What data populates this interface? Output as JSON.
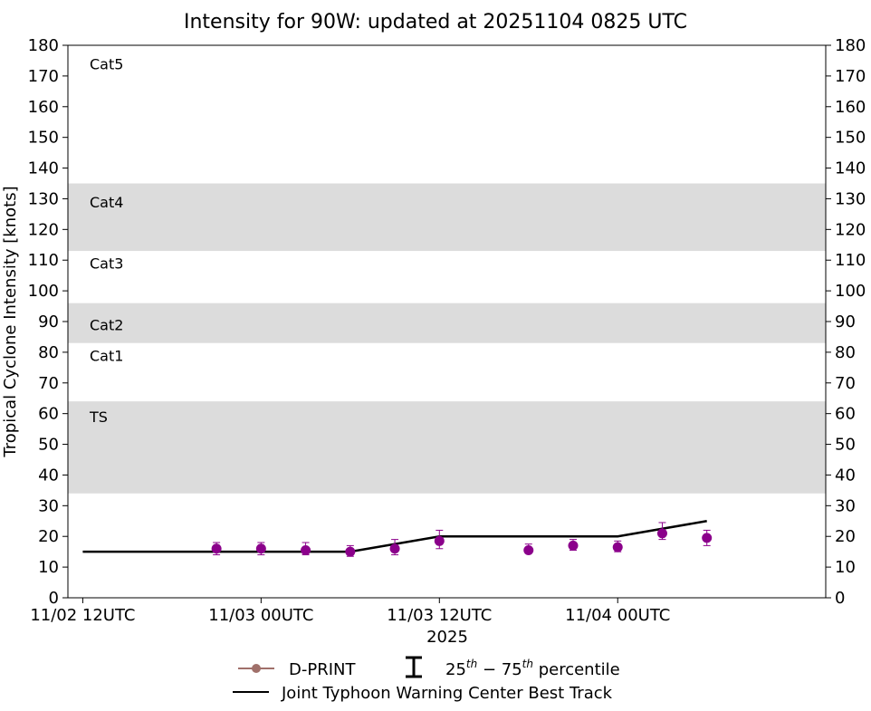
{
  "chart_data": {
    "type": "line",
    "title": "Intensity for 90W: updated at 20251104 0825 UTC",
    "xlabel": "2025",
    "ylabel": "Tropical Cyclone Intensity [knots]",
    "ylim": [
      0,
      180
    ],
    "yticks": [
      0,
      10,
      20,
      30,
      40,
      50,
      60,
      70,
      80,
      90,
      100,
      110,
      120,
      130,
      140,
      150,
      160,
      170,
      180
    ],
    "xlim": [
      "2025-11-02 11:00",
      "2025-11-04 14:00"
    ],
    "xticks": [
      {
        "t": "2025-11-02 12:00",
        "label": "11/02 12UTC"
      },
      {
        "t": "2025-11-03 00:00",
        "label": "11/03 00UTC"
      },
      {
        "t": "2025-11-03 12:00",
        "label": "11/03 12UTC"
      },
      {
        "t": "2025-11-04 00:00",
        "label": "11/04 00UTC"
      }
    ],
    "bands": [
      {
        "from": 34,
        "to": 64,
        "shaded": true
      },
      {
        "from": 83,
        "to": 96,
        "shaded": true
      },
      {
        "from": 113,
        "to": 135,
        "shaded": true
      }
    ],
    "band_labels": [
      {
        "text": "TS",
        "y": 59
      },
      {
        "text": "Cat1",
        "y": 79
      },
      {
        "text": "Cat2",
        "y": 89
      },
      {
        "text": "Cat3",
        "y": 109
      },
      {
        "text": "Cat4",
        "y": 129
      },
      {
        "text": "Cat5",
        "y": 174
      }
    ],
    "series": [
      {
        "name": "Joint Typhoon Warning Center Best Track",
        "kind": "line",
        "color": "#000000",
        "points": [
          {
            "t": "2025-11-02 12:00",
            "y": 15
          },
          {
            "t": "2025-11-03 06:00",
            "y": 15
          },
          {
            "t": "2025-11-03 12:00",
            "y": 20
          },
          {
            "t": "2025-11-04 00:00",
            "y": 20
          },
          {
            "t": "2025-11-04 06:00",
            "y": 25
          }
        ]
      },
      {
        "name": "D-PRINT",
        "kind": "points_with_errorbars",
        "color": "#8b008b",
        "legend_color": "#a0706a",
        "points": [
          {
            "t": "2025-11-02 21:00",
            "y": 16,
            "lo": 14,
            "hi": 18
          },
          {
            "t": "2025-11-03 00:00",
            "y": 16,
            "lo": 14,
            "hi": 18
          },
          {
            "t": "2025-11-03 03:00",
            "y": 15.5,
            "lo": 14,
            "hi": 18
          },
          {
            "t": "2025-11-03 06:00",
            "y": 15,
            "lo": 13.5,
            "hi": 17
          },
          {
            "t": "2025-11-03 09:00",
            "y": 16,
            "lo": 14,
            "hi": 19
          },
          {
            "t": "2025-11-03 12:00",
            "y": 18.5,
            "lo": 16,
            "hi": 22
          },
          {
            "t": "2025-11-03 18:00",
            "y": 15.5,
            "lo": 14.5,
            "hi": 17.5
          },
          {
            "t": "2025-11-03 21:00",
            "y": 17,
            "lo": 15.5,
            "hi": 19
          },
          {
            "t": "2025-11-04 00:00",
            "y": 16.5,
            "lo": 15,
            "hi": 18.5
          },
          {
            "t": "2025-11-04 03:00",
            "y": 21,
            "lo": 19,
            "hi": 24.5
          },
          {
            "t": "2025-11-04 06:00",
            "y": 19.5,
            "lo": 17,
            "hi": 22
          }
        ]
      }
    ],
    "legend": {
      "placement": "bottom-center",
      "dprint_label": "D-PRINT",
      "percentile_label_pre": "25",
      "percentile_sup1": "th",
      "percentile_dash": " − 75",
      "percentile_sup2": "th",
      "percentile_label_post": " percentile",
      "besttrack_label": "Joint Typhoon Warning Center Best Track"
    },
    "colors": {
      "band_fill": "#dcdcdc",
      "marker": "#8b008b",
      "line": "#000000"
    }
  }
}
